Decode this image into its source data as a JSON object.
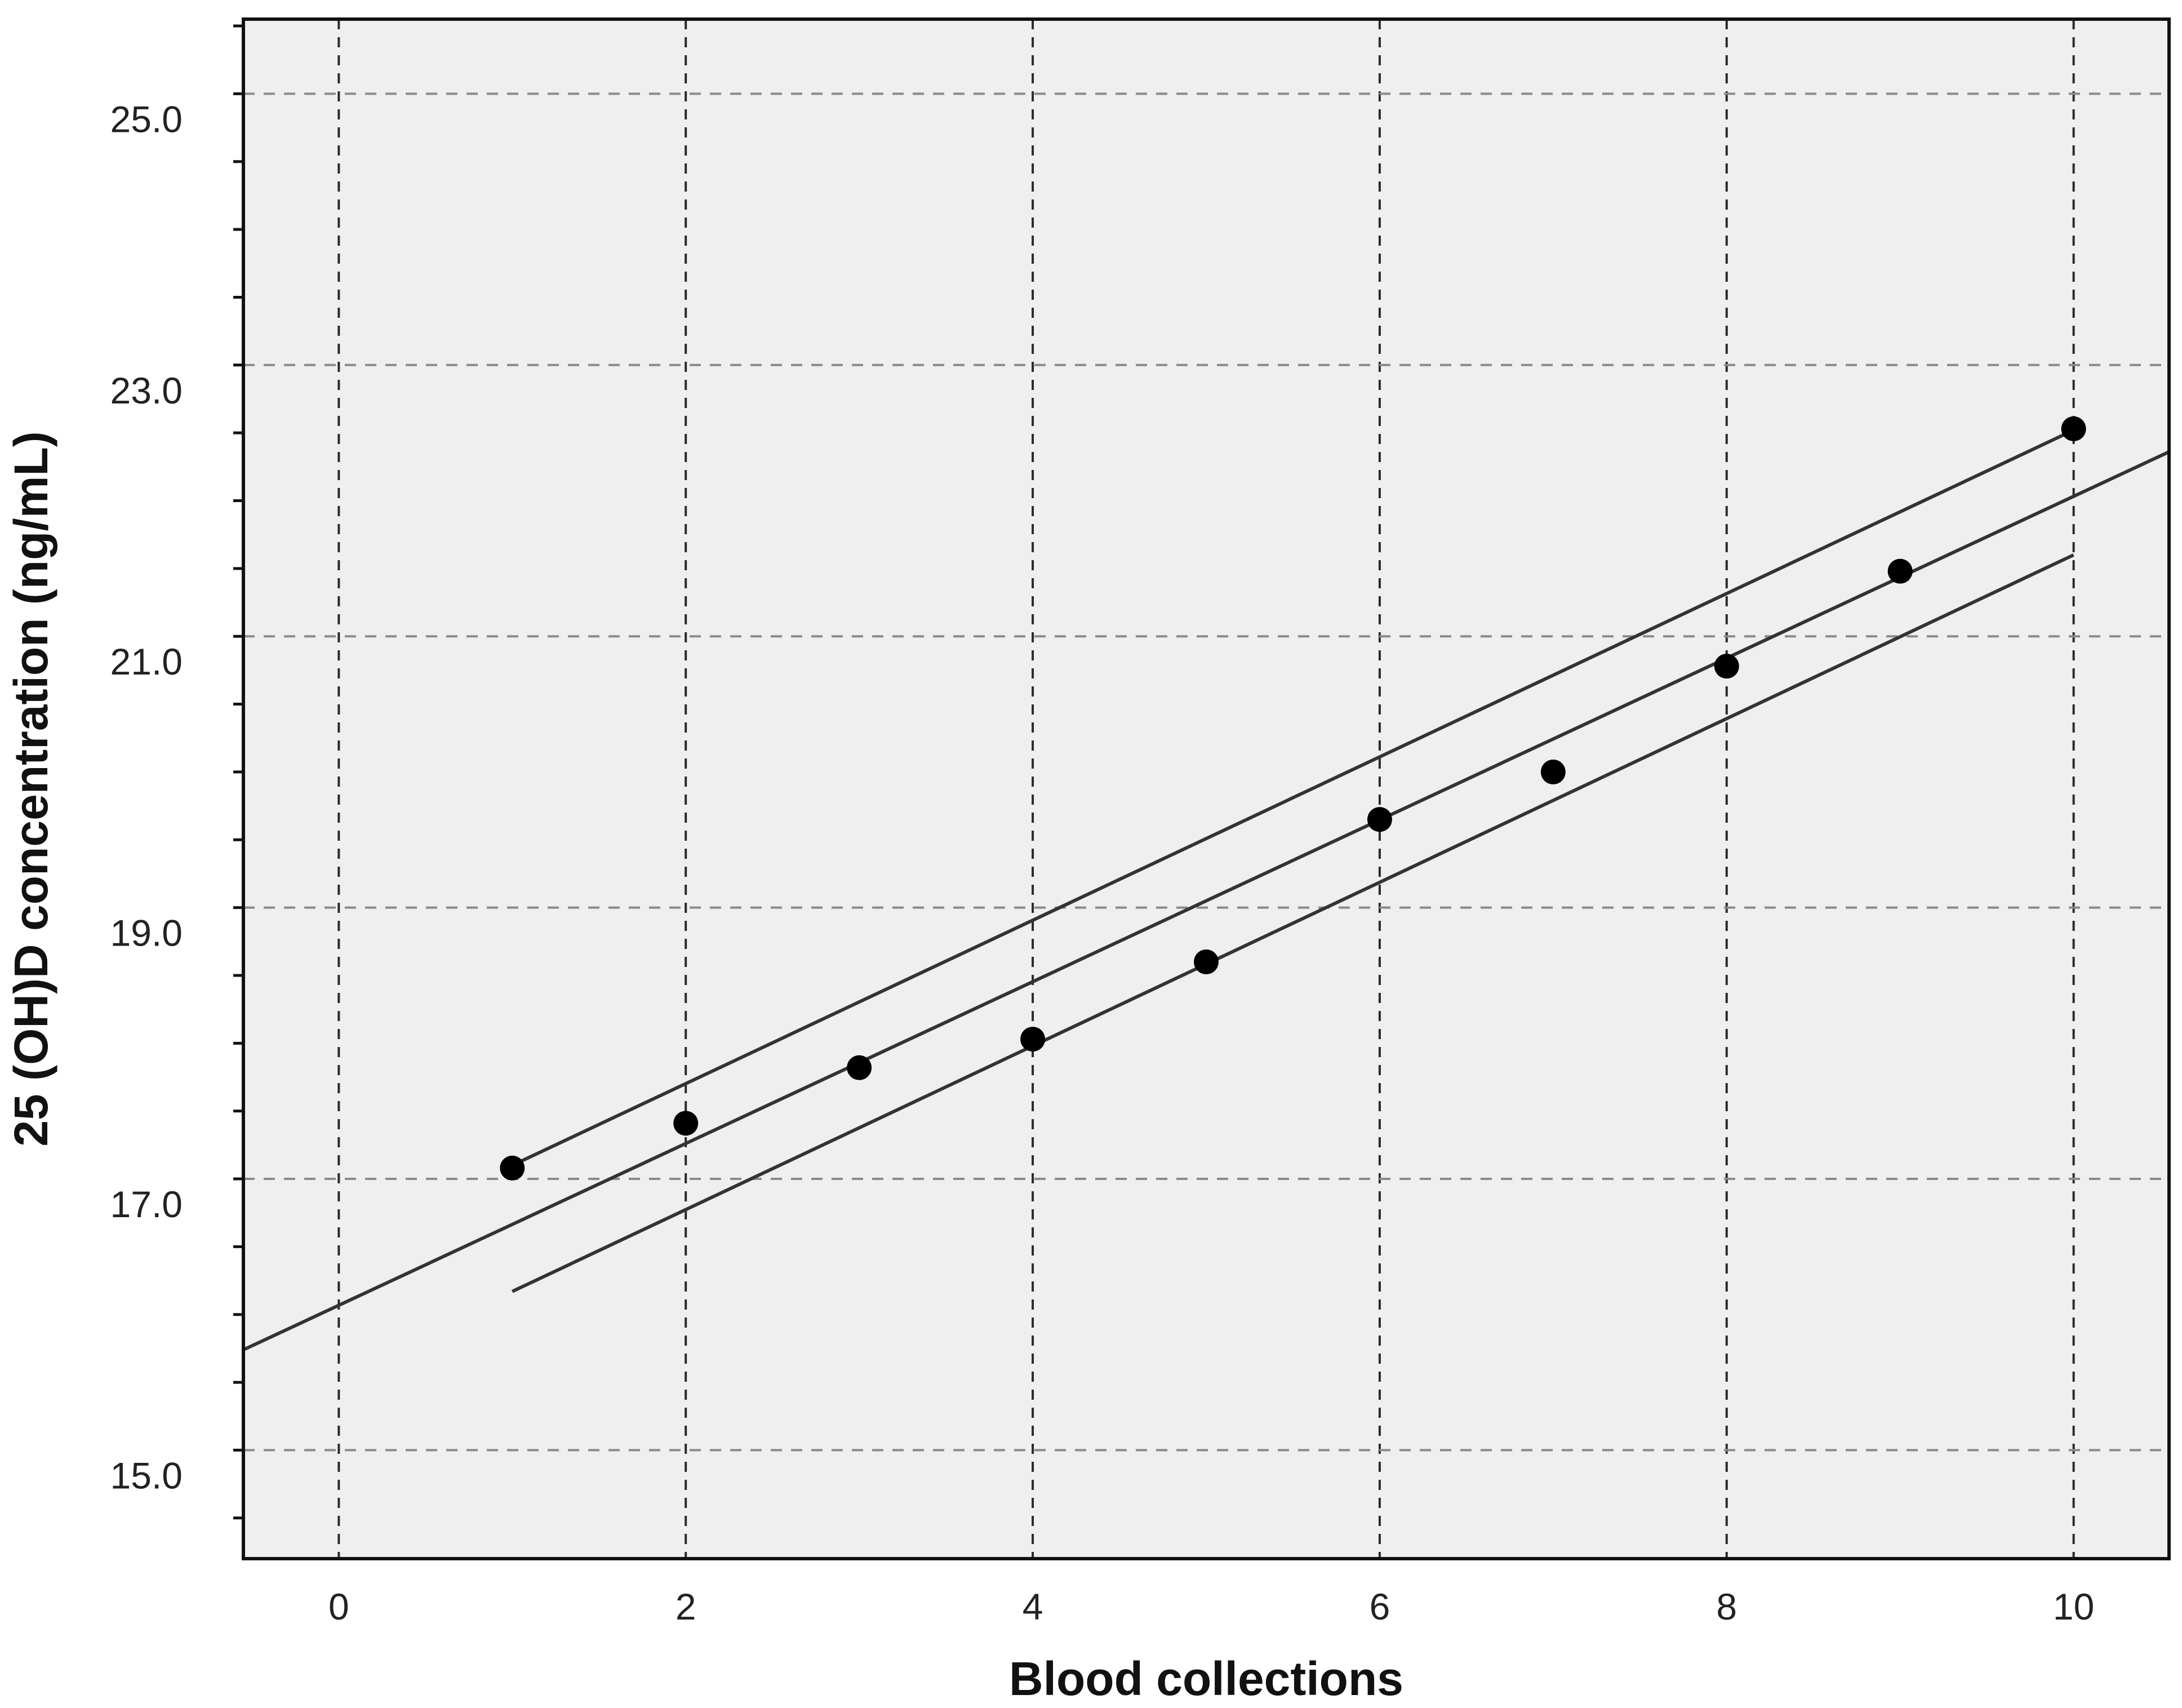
{
  "chart_data": {
    "type": "scatter",
    "title": "",
    "xlabel": "Blood collections",
    "ylabel": "25 (OH)D concentration (ng/mL)",
    "xlim": [
      -0.55,
      10.55
    ],
    "ylim": [
      14.2,
      25.55
    ],
    "x_ticks": [
      0,
      2,
      4,
      6,
      8,
      10
    ],
    "y_ticks": [
      15.0,
      17.0,
      19.0,
      21.0,
      23.0,
      25.0
    ],
    "x_tick_labels": [
      "0",
      "2",
      "4",
      "6",
      "8",
      "10"
    ],
    "y_tick_labels": [
      "15.0",
      "17.0",
      "19.0",
      "21.0",
      "23.0",
      "25.0"
    ],
    "grid": true,
    "points": {
      "x": [
        1,
        2,
        3,
        4,
        5,
        6,
        7,
        8,
        9,
        10
      ],
      "y": [
        17.08,
        17.41,
        17.82,
        18.03,
        18.6,
        19.65,
        20.0,
        20.78,
        21.48,
        22.53
      ]
    },
    "fit_line": {
      "x": [
        -0.55,
        10.55
      ],
      "y": [
        15.74,
        22.36
      ]
    },
    "upper_band": {
      "x": [
        1,
        10
      ],
      "y": [
        17.1,
        22.52
      ]
    },
    "lower_band": {
      "x": [
        1,
        10
      ],
      "y": [
        16.17,
        21.6
      ]
    },
    "colors": {
      "plot_background": "#efefef",
      "point": "#000000",
      "line": "#333333",
      "grid": "#333333"
    }
  }
}
